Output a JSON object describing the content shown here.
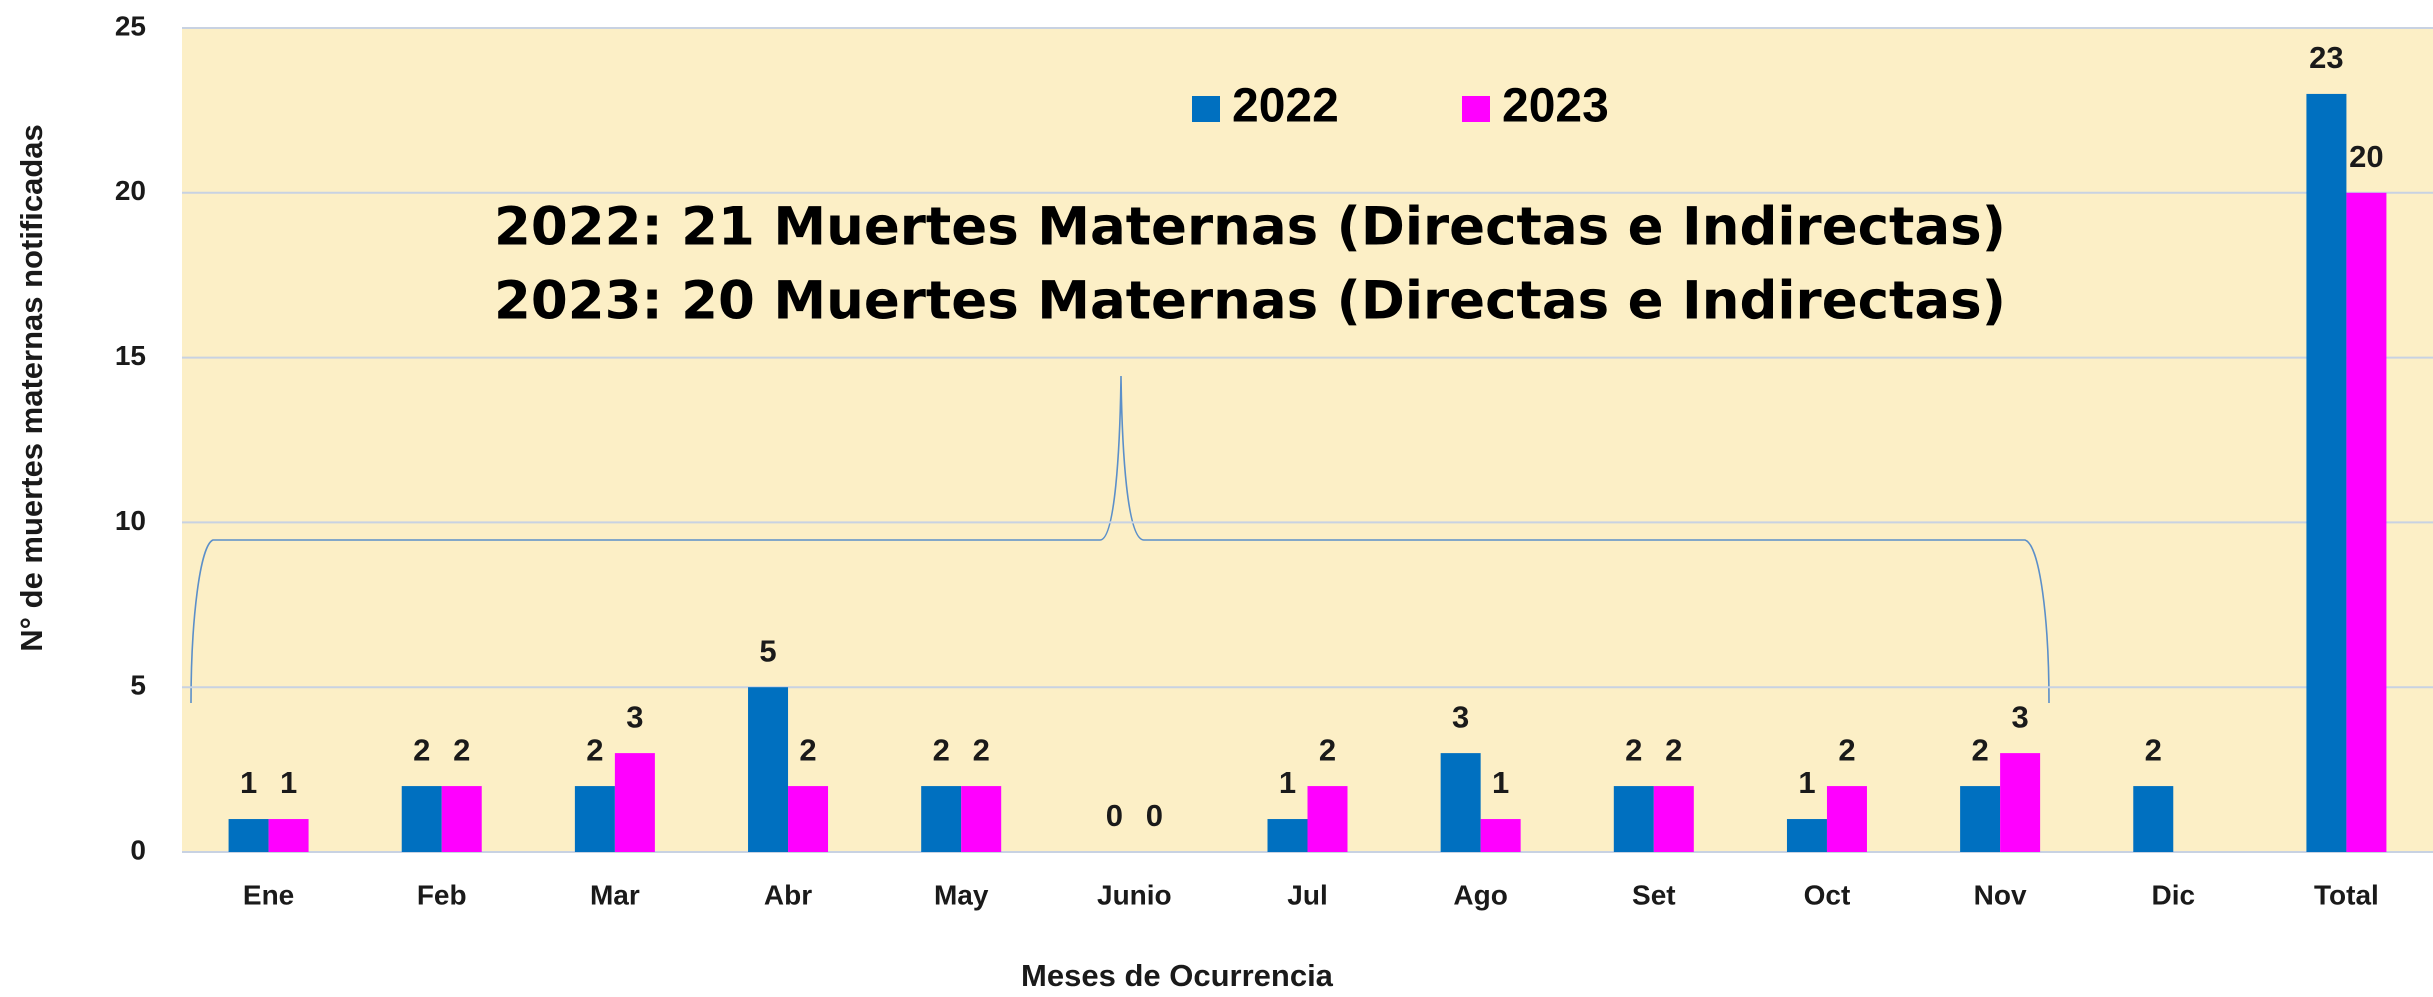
{
  "chart_data": {
    "type": "bar",
    "annotations": [
      "2022: 21 Muertes Maternas (Directas e Indirectas)",
      "2023: 20 Muertes Maternas (Directas e Indirectas)"
    ],
    "x_label": "Meses de Ocurrencia",
    "y_label": "N° de muertes maternas  notificadas",
    "categories": [
      "Ene",
      "Feb",
      "Mar",
      "Abr",
      "May",
      "Junio",
      "Jul",
      "Ago",
      "Set",
      "Oct",
      "Nov",
      "Dic",
      "Total"
    ],
    "series": [
      {
        "name": "2022",
        "color": "#0070c0",
        "values": [
          1,
          2,
          2,
          5,
          2,
          0,
          1,
          3,
          2,
          1,
          2,
          2,
          23
        ]
      },
      {
        "name": "2023",
        "color": "#ff00ff",
        "values": [
          1,
          2,
          3,
          2,
          2,
          0,
          2,
          1,
          2,
          2,
          3,
          null,
          20
        ]
      }
    ],
    "ylim": [
      0,
      25
    ],
    "yticks": [
      0,
      5,
      10,
      15,
      20,
      25
    ],
    "grid": true,
    "legend": "top"
  }
}
